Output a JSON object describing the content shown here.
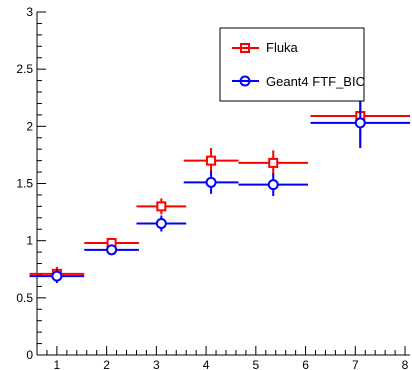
{
  "chart_data": {
    "type": "scatter",
    "title": "",
    "xlabel": "",
    "ylabel": "",
    "xlim": [
      0.6,
      8.1
    ],
    "ylim": [
      0,
      3
    ],
    "x_ticks": [
      "1",
      "2",
      "3",
      "4",
      "5",
      "6",
      "7",
      "8"
    ],
    "y_ticks": [
      "0",
      "0.5",
      "1",
      "1.5",
      "2",
      "2.5",
      "3"
    ],
    "grid": false,
    "legend_position": "top-right",
    "series": [
      {
        "name": "Fluka",
        "color": "#ff0000",
        "marker": "open-square",
        "points": [
          {
            "x": 1.0,
            "xerr": 0.55,
            "y": 0.71,
            "yerr": 0.06
          },
          {
            "x": 2.1,
            "xerr": 0.55,
            "y": 0.98,
            "yerr": 0.04
          },
          {
            "x": 3.1,
            "xerr": 0.5,
            "y": 1.3,
            "yerr": 0.07
          },
          {
            "x": 4.1,
            "xerr": 0.55,
            "y": 1.7,
            "yerr": 0.11
          },
          {
            "x": 5.35,
            "xerr": 0.7,
            "y": 1.68,
            "yerr": 0.11
          },
          {
            "x": 7.1,
            "xerr": 1.0,
            "y": 2.09,
            "yerr": 0.27
          }
        ]
      },
      {
        "name": "Geant4 FTF_BIC",
        "color": "#0000ff",
        "marker": "open-circle",
        "points": [
          {
            "x": 1.0,
            "xerr": 0.55,
            "y": 0.69,
            "yerr": 0.06
          },
          {
            "x": 2.1,
            "xerr": 0.55,
            "y": 0.92,
            "yerr": 0.03
          },
          {
            "x": 3.1,
            "xerr": 0.5,
            "y": 1.15,
            "yerr": 0.07
          },
          {
            "x": 4.1,
            "xerr": 0.55,
            "y": 1.51,
            "yerr": 0.1
          },
          {
            "x": 5.35,
            "xerr": 0.7,
            "y": 1.49,
            "yerr": 0.1
          },
          {
            "x": 7.1,
            "xerr": 1.0,
            "y": 2.03,
            "yerr": 0.22
          }
        ]
      }
    ]
  }
}
